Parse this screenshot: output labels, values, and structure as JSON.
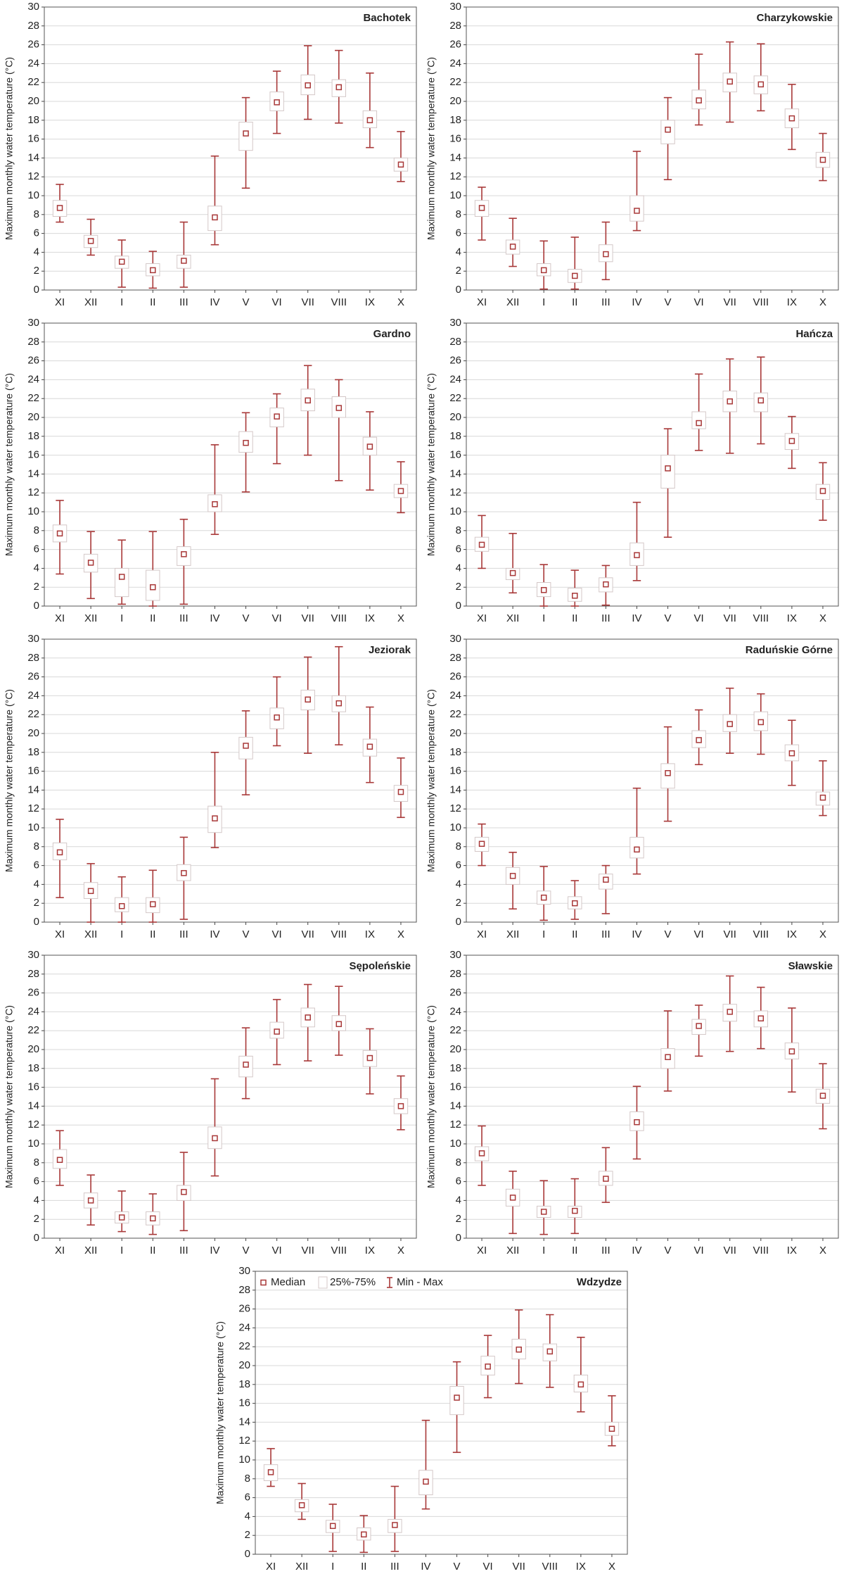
{
  "chart_data": [
    {
      "type": "box",
      "title": "Bachotek",
      "ylabel": "Maximum monthly water temperature (°C)",
      "categories": [
        "XI",
        "XII",
        "I",
        "II",
        "III",
        "IV",
        "V",
        "VI",
        "VII",
        "VIII",
        "IX",
        "X"
      ],
      "min": [
        7.2,
        3.7,
        0.3,
        0.2,
        0.3,
        4.8,
        10.8,
        16.6,
        18.1,
        17.7,
        15.1,
        11.5
      ],
      "q1": [
        7.8,
        4.5,
        2.3,
        1.5,
        2.3,
        6.3,
        14.8,
        19.0,
        20.7,
        20.5,
        17.2,
        12.6
      ],
      "median": [
        8.7,
        5.2,
        3.0,
        2.1,
        3.1,
        7.7,
        16.6,
        19.9,
        21.7,
        21.5,
        18.0,
        13.3
      ],
      "q3": [
        9.5,
        5.8,
        3.6,
        2.8,
        3.7,
        8.9,
        17.8,
        21.0,
        22.8,
        22.3,
        19.0,
        14.0
      ],
      "max": [
        11.2,
        7.5,
        5.3,
        4.1,
        7.2,
        14.2,
        20.4,
        23.2,
        25.9,
        25.4,
        23.0,
        16.8
      ],
      "ylim": [
        0,
        30
      ],
      "yticks": [
        0,
        2,
        4,
        6,
        8,
        10,
        12,
        14,
        16,
        18,
        20,
        22,
        24,
        26,
        28,
        30
      ],
      "grid": true,
      "color": "#a83838"
    },
    {
      "type": "box",
      "title": "Charzykowskie",
      "ylabel": "Maximum monthly water temperature (°C)",
      "categories": [
        "XI",
        "XII",
        "I",
        "II",
        "III",
        "IV",
        "V",
        "VI",
        "VII",
        "VIII",
        "IX",
        "X"
      ],
      "min": [
        5.3,
        2.5,
        0.1,
        0.1,
        1.1,
        6.3,
        11.7,
        17.5,
        17.8,
        19.0,
        14.9,
        11.6
      ],
      "q1": [
        7.8,
        3.8,
        1.5,
        0.8,
        3.0,
        7.3,
        15.5,
        19.2,
        21.0,
        20.8,
        17.2,
        13.0
      ],
      "median": [
        8.7,
        4.6,
        2.1,
        1.5,
        3.8,
        8.4,
        17.0,
        20.1,
        22.1,
        21.8,
        18.2,
        13.8
      ],
      "q3": [
        9.5,
        5.3,
        2.8,
        2.2,
        4.8,
        10.0,
        18.0,
        21.2,
        23.0,
        22.7,
        19.2,
        14.6
      ],
      "max": [
        10.9,
        7.6,
        5.2,
        5.6,
        7.2,
        14.7,
        20.4,
        25.0,
        26.3,
        26.1,
        21.8,
        16.6
      ],
      "ylim": [
        0,
        30
      ],
      "yticks": [
        0,
        2,
        4,
        6,
        8,
        10,
        12,
        14,
        16,
        18,
        20,
        22,
        24,
        26,
        28,
        30
      ],
      "grid": true,
      "color": "#a83838"
    },
    {
      "type": "box",
      "title": "Gardno",
      "ylabel": "Maximum monthly water temperature (°C)",
      "categories": [
        "XI",
        "XII",
        "I",
        "II",
        "III",
        "IV",
        "V",
        "VI",
        "VII",
        "VIII",
        "IX",
        "X"
      ],
      "min": [
        3.4,
        0.8,
        0.2,
        0.0,
        0.2,
        7.6,
        12.1,
        15.1,
        16.0,
        13.3,
        12.3,
        9.9
      ],
      "q1": [
        6.8,
        3.6,
        1.0,
        0.6,
        4.3,
        10.0,
        16.3,
        19.0,
        20.7,
        20.0,
        16.0,
        11.5
      ],
      "median": [
        7.7,
        4.6,
        3.1,
        2.0,
        5.5,
        10.8,
        17.3,
        20.1,
        21.8,
        21.0,
        16.9,
        12.2
      ],
      "q3": [
        8.6,
        5.5,
        4.0,
        3.8,
        6.3,
        11.8,
        18.5,
        21.0,
        23.0,
        22.2,
        17.9,
        12.9
      ],
      "max": [
        11.2,
        7.9,
        7.0,
        7.9,
        9.2,
        17.1,
        20.5,
        22.5,
        25.5,
        24.0,
        20.6,
        15.3
      ],
      "ylim": [
        0,
        30
      ],
      "yticks": [
        0,
        2,
        4,
        6,
        8,
        10,
        12,
        14,
        16,
        18,
        20,
        22,
        24,
        26,
        28,
        30
      ],
      "grid": true,
      "color": "#a83838"
    },
    {
      "type": "box",
      "title": "Hańcza",
      "ylabel": "Maximum monthly water temperature (°C)",
      "categories": [
        "XI",
        "XII",
        "I",
        "II",
        "III",
        "IV",
        "V",
        "VI",
        "VII",
        "VIII",
        "IX",
        "X"
      ],
      "min": [
        4.0,
        1.4,
        0.0,
        0.0,
        0.1,
        2.7,
        7.3,
        16.5,
        16.2,
        17.2,
        14.6,
        9.1
      ],
      "q1": [
        5.8,
        2.8,
        1.0,
        0.5,
        1.5,
        4.3,
        12.5,
        18.8,
        20.6,
        20.6,
        16.6,
        11.3
      ],
      "median": [
        6.5,
        3.5,
        1.7,
        1.1,
        2.3,
        5.4,
        14.6,
        19.4,
        21.7,
        21.8,
        17.5,
        12.2
      ],
      "q3": [
        7.3,
        4.0,
        2.5,
        1.9,
        3.0,
        6.7,
        16.0,
        20.6,
        22.8,
        22.6,
        18.3,
        12.9
      ],
      "max": [
        9.6,
        7.7,
        4.4,
        3.8,
        4.3,
        11.0,
        18.8,
        24.6,
        26.2,
        26.4,
        20.1,
        15.2
      ],
      "ylim": [
        0,
        30
      ],
      "yticks": [
        0,
        2,
        4,
        6,
        8,
        10,
        12,
        14,
        16,
        18,
        20,
        22,
        24,
        26,
        28,
        30
      ],
      "grid": true,
      "color": "#a83838"
    },
    {
      "type": "box",
      "title": "Jeziorak",
      "ylabel": "Maximum monthly water temperature (°C)",
      "categories": [
        "XI",
        "XII",
        "I",
        "II",
        "III",
        "IV",
        "V",
        "VI",
        "VII",
        "VIII",
        "IX",
        "X"
      ],
      "min": [
        2.6,
        0.0,
        0.0,
        0.0,
        0.3,
        7.9,
        13.5,
        18.7,
        17.9,
        18.8,
        14.8,
        11.1
      ],
      "q1": [
        6.6,
        2.5,
        1.1,
        1.0,
        4.4,
        9.5,
        17.3,
        20.5,
        22.5,
        22.3,
        17.6,
        12.8
      ],
      "median": [
        7.4,
        3.3,
        1.7,
        1.9,
        5.2,
        11.0,
        18.7,
        21.7,
        23.6,
        23.2,
        18.6,
        13.8
      ],
      "q3": [
        8.4,
        4.2,
        2.6,
        2.6,
        6.1,
        12.3,
        19.6,
        22.7,
        24.6,
        24.0,
        19.4,
        14.5
      ],
      "max": [
        10.9,
        6.2,
        4.8,
        5.5,
        9.0,
        18.0,
        22.4,
        26.0,
        28.1,
        29.2,
        22.8,
        17.4
      ],
      "ylim": [
        0,
        30
      ],
      "yticks": [
        0,
        2,
        4,
        6,
        8,
        10,
        12,
        14,
        16,
        18,
        20,
        22,
        24,
        26,
        28,
        30
      ],
      "grid": true,
      "color": "#a83838"
    },
    {
      "type": "box",
      "title": "Raduńskie Górne",
      "ylabel": "Maximum monthly water temperature (°C)",
      "categories": [
        "XI",
        "XII",
        "I",
        "II",
        "III",
        "IV",
        "V",
        "VI",
        "VII",
        "VIII",
        "IX",
        "X"
      ],
      "min": [
        6.0,
        1.4,
        0.2,
        0.3,
        0.9,
        5.1,
        10.7,
        16.7,
        17.9,
        17.8,
        14.5,
        11.3
      ],
      "q1": [
        7.5,
        4.0,
        1.9,
        1.4,
        3.5,
        6.8,
        14.2,
        18.5,
        20.2,
        20.3,
        17.1,
        12.4
      ],
      "median": [
        8.3,
        4.9,
        2.6,
        2.0,
        4.5,
        7.7,
        15.8,
        19.3,
        21.0,
        21.2,
        17.9,
        13.2
      ],
      "q3": [
        9.0,
        5.8,
        3.3,
        2.7,
        5.1,
        9.0,
        16.8,
        20.3,
        22.0,
        22.3,
        18.8,
        13.8
      ],
      "max": [
        10.4,
        7.4,
        5.9,
        4.4,
        6.0,
        14.2,
        20.7,
        22.5,
        24.8,
        24.2,
        21.4,
        17.1
      ],
      "ylim": [
        0,
        30
      ],
      "yticks": [
        0,
        2,
        4,
        6,
        8,
        10,
        12,
        14,
        16,
        18,
        20,
        22,
        24,
        26,
        28,
        30
      ],
      "grid": true,
      "color": "#a83838"
    },
    {
      "type": "box",
      "title": "Sępoleńskie",
      "ylabel": "Maximum monthly water temperature (°C)",
      "categories": [
        "XI",
        "XII",
        "I",
        "II",
        "III",
        "IV",
        "V",
        "VI",
        "VII",
        "VIII",
        "IX",
        "X"
      ],
      "min": [
        5.6,
        1.4,
        0.7,
        0.4,
        0.8,
        6.6,
        14.8,
        18.4,
        18.8,
        19.4,
        15.3,
        11.5
      ],
      "q1": [
        7.4,
        3.2,
        1.6,
        1.4,
        4.0,
        9.5,
        17.1,
        21.2,
        22.4,
        22.0,
        18.2,
        13.2
      ],
      "median": [
        8.3,
        4.0,
        2.2,
        2.1,
        4.9,
        10.6,
        18.4,
        21.9,
        23.4,
        22.7,
        19.1,
        14.0
      ],
      "q3": [
        9.4,
        4.8,
        2.8,
        2.8,
        5.6,
        11.8,
        19.3,
        22.9,
        24.4,
        23.6,
        19.9,
        14.8
      ],
      "max": [
        11.4,
        6.7,
        5.0,
        4.7,
        9.1,
        16.9,
        22.3,
        25.3,
        26.9,
        26.7,
        22.2,
        17.2
      ],
      "ylim": [
        0,
        30
      ],
      "yticks": [
        0,
        2,
        4,
        6,
        8,
        10,
        12,
        14,
        16,
        18,
        20,
        22,
        24,
        26,
        28,
        30
      ],
      "grid": true,
      "color": "#a83838"
    },
    {
      "type": "box",
      "title": "Sławskie",
      "ylabel": "Maximum monthly water temperature (°C)",
      "categories": [
        "XI",
        "XII",
        "I",
        "II",
        "III",
        "IV",
        "V",
        "VI",
        "VII",
        "VIII",
        "IX",
        "X"
      ],
      "min": [
        5.6,
        0.5,
        0.4,
        0.5,
        3.8,
        8.4,
        15.6,
        19.3,
        19.8,
        20.1,
        15.5,
        11.6
      ],
      "q1": [
        8.2,
        3.4,
        2.2,
        2.2,
        5.6,
        11.4,
        18.0,
        21.6,
        23.0,
        22.4,
        19.0,
        14.3
      ],
      "median": [
        9.0,
        4.3,
        2.8,
        2.9,
        6.3,
        12.3,
        19.2,
        22.5,
        24.0,
        23.3,
        19.8,
        15.1
      ],
      "q3": [
        9.7,
        5.2,
        3.4,
        3.4,
        7.1,
        13.4,
        20.1,
        23.2,
        24.8,
        24.1,
        20.7,
        15.8
      ],
      "max": [
        11.9,
        7.1,
        6.1,
        6.3,
        9.6,
        16.1,
        24.1,
        24.7,
        27.8,
        26.6,
        24.4,
        18.5
      ],
      "ylim": [
        0,
        30
      ],
      "yticks": [
        0,
        2,
        4,
        6,
        8,
        10,
        12,
        14,
        16,
        18,
        20,
        22,
        24,
        26,
        28,
        30
      ],
      "grid": true,
      "color": "#a83838"
    },
    {
      "type": "box",
      "title": "Wdzydze",
      "ylabel": "Maximum monthly water temperature (°C)",
      "categories": [
        "XI",
        "XII",
        "I",
        "II",
        "III",
        "IV",
        "V",
        "VI",
        "VII",
        "VIII",
        "IX",
        "X"
      ],
      "min": [
        7.2,
        3.7,
        0.3,
        0.2,
        0.3,
        4.8,
        10.8,
        16.6,
        18.1,
        17.7,
        15.1,
        11.5
      ],
      "q1": [
        7.8,
        4.5,
        2.3,
        1.5,
        2.3,
        6.3,
        14.8,
        19.0,
        20.7,
        20.5,
        17.2,
        12.6
      ],
      "median": [
        8.7,
        5.2,
        3.0,
        2.1,
        3.1,
        7.7,
        16.6,
        19.9,
        21.7,
        21.5,
        18.0,
        13.3
      ],
      "q3": [
        9.5,
        5.8,
        3.6,
        2.8,
        3.7,
        8.9,
        17.8,
        21.0,
        22.8,
        22.3,
        19.0,
        14.0
      ],
      "max": [
        11.2,
        7.5,
        5.3,
        4.1,
        7.2,
        14.2,
        20.4,
        23.2,
        25.9,
        25.4,
        23.0,
        16.8
      ],
      "ylim": [
        0,
        30
      ],
      "yticks": [
        0,
        2,
        4,
        6,
        8,
        10,
        12,
        14,
        16,
        18,
        20,
        22,
        24,
        26,
        28,
        30
      ],
      "grid": true,
      "color": "#a83838",
      "legend": [
        "Median",
        "25%-75%",
        "Min - Max"
      ],
      "legend_position": "top-left"
    }
  ]
}
